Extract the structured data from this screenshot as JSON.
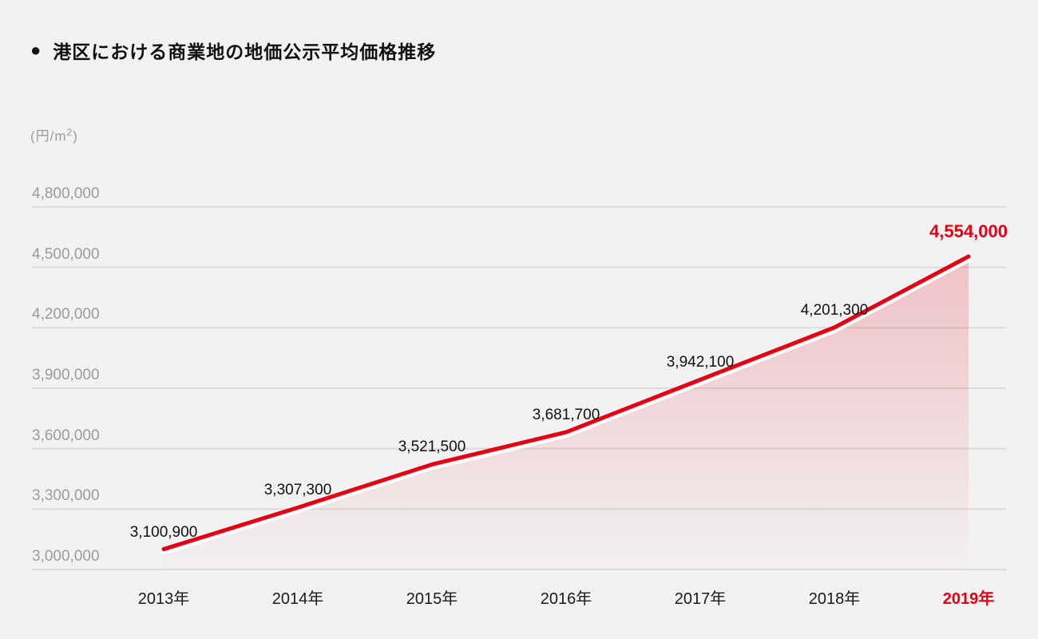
{
  "page": {
    "title_bullet": "●",
    "title": "港区における商業地の地価公示平均価格推移",
    "unit": {
      "prefix": "(円/m",
      "sup": "2",
      "suffix": ")"
    }
  },
  "colors": {
    "background": "#f2f2f2",
    "grid": "#dcdbdb",
    "accent": "#e60012",
    "line_casing": "#ffffff",
    "tick_gray": "#9b9b9b",
    "text": "#1a1a1a"
  },
  "chart_data": {
    "type": "area",
    "title": "港区における商業地の地価公示平均価格推移",
    "ylabel": "(円/m²)",
    "xlabel": "",
    "categories": [
      "2013年",
      "2014年",
      "2015年",
      "2016年",
      "2017年",
      "2018年",
      "2019年"
    ],
    "values": [
      3100900,
      3307300,
      3521500,
      3681700,
      3942100,
      4201300,
      4554000
    ],
    "value_labels": [
      "3,100,900",
      "3,307,300",
      "3,521,500",
      "3,681,700",
      "3,942,100",
      "4,201,300",
      "4,554,000"
    ],
    "yticks": [
      3000000,
      3300000,
      3600000,
      3900000,
      4200000,
      4500000,
      4800000
    ],
    "ytick_labels": [
      "3,000,000",
      "3,300,000",
      "3,600,000",
      "3,900,000",
      "4,200,000",
      "4,500,000",
      "4,800,000"
    ],
    "ylim": [
      3000000,
      4800000
    ],
    "grid": true,
    "legend": null,
    "highlight_last": true,
    "line_color": "#e60012",
    "area_gradient_top": "rgba(230,0,18,0.20)",
    "area_gradient_bottom": "rgba(230,0,18,0.01)"
  }
}
